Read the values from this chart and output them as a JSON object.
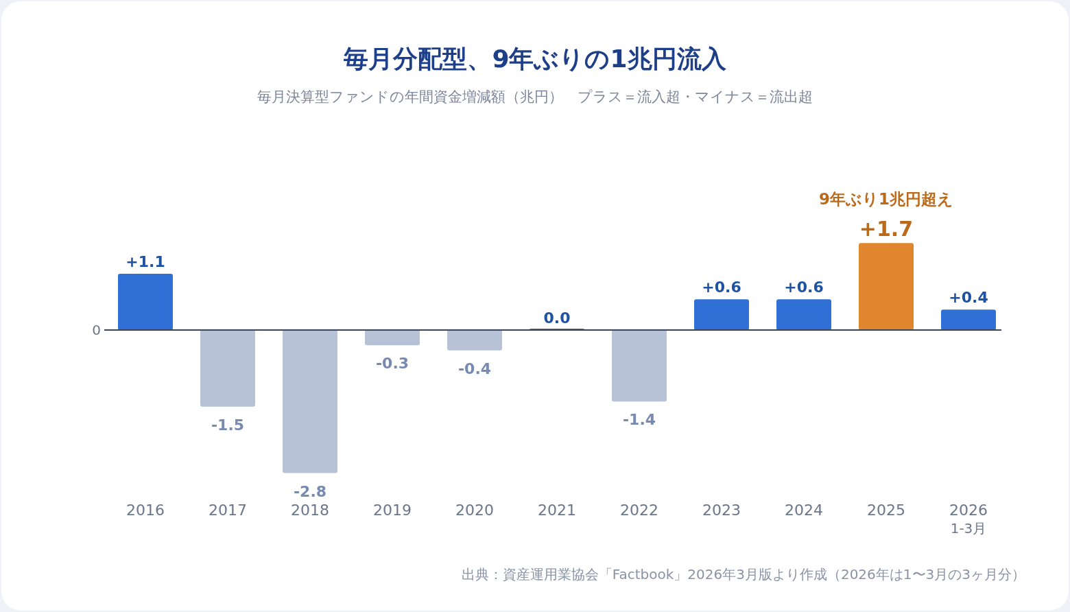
{
  "chart_data": {
    "type": "bar",
    "title": "毎月分配型、9年ぶりの1兆円流入",
    "subtitle": "毎月決算型ファンドの年間資金増減額（兆円）　プラス＝流入超・マイナス＝流出超",
    "categories": [
      "2016",
      "2017",
      "2018",
      "2019",
      "2020",
      "2021",
      "2022",
      "2023",
      "2024",
      "2025",
      "2026\n1-3月"
    ],
    "values": [
      1.1,
      -1.5,
      -2.8,
      -0.3,
      -0.4,
      0.0,
      -1.4,
      0.6,
      0.6,
      1.7,
      0.4
    ],
    "colors": [
      "#2f6fd6",
      "#b8c2d6",
      "#b8c2d6",
      "#b8c2d6",
      "#b8c2d6",
      "#2f6fd6",
      "#b8c2d6",
      "#2f6fd6",
      "#2f6fd6",
      "#e0862e",
      "#2f6fd6"
    ],
    "value_labels": [
      "+1.1",
      "-1.5",
      "-2.8",
      "-0.3",
      "-0.4",
      "0.0",
      "-1.4",
      "+0.6",
      "+0.6",
      "+1.7",
      "+0.4"
    ],
    "annotations": [
      {
        "text": "9年ぶり1兆円超え",
        "x": "2025",
        "y": 1.7
      },
      "0",
      "出典：資産運用業協会「Factbook」2026年3月版より作成（2026年は1〜3月の3ヶ月分）"
    ]
  }
}
